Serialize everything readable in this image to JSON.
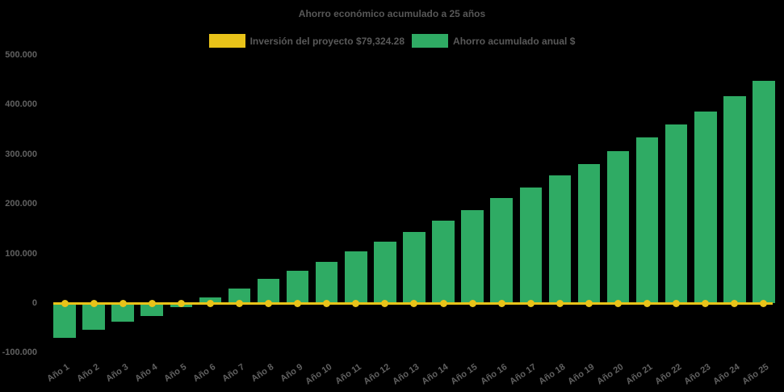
{
  "title": "Ahorro económico acumulado a 25 años",
  "chart_data": {
    "type": "bar",
    "title": "Ahorro económico acumulado a 25 años",
    "background": "#000000",
    "text_color": "#616161",
    "grid": false,
    "legend_position": "top",
    "categories": [
      "Año 1",
      "Año 2",
      "Año 3",
      "Año 4",
      "Año 5",
      "Año 6",
      "Año 7",
      "Año 8",
      "Año 9",
      "Año 10",
      "Año 11",
      "Año 12",
      "Año 13",
      "Año 14",
      "Año 15",
      "Año 16",
      "Año 17",
      "Año 18",
      "Año 19",
      "Año 20",
      "Año 21",
      "Año 22",
      "Año 23",
      "Año 24",
      "Año 25"
    ],
    "series": [
      {
        "name": "Inversión del proyecto $79,324.28",
        "type": "line",
        "color": "#E9C319",
        "values": [
          0,
          0,
          0,
          0,
          0,
          0,
          0,
          0,
          0,
          0,
          0,
          0,
          0,
          0,
          0,
          0,
          0,
          0,
          0,
          0,
          0,
          0,
          0,
          0,
          0
        ]
      },
      {
        "name": "Ahorro acumulado anual $",
        "type": "bar",
        "color": "#2FAB64",
        "values": [
          -70500,
          -54000,
          -38000,
          -25500,
          -8000,
          12000,
          29000,
          48500,
          65500,
          83500,
          104500,
          123500,
          143500,
          165500,
          186500,
          211500,
          233000,
          257500,
          280500,
          306500,
          333500,
          359500,
          386000,
          417000,
          447000
        ]
      }
    ],
    "ylim": [
      -100000,
      500000
    ],
    "yticks": [
      {
        "value": 500000,
        "label": "500.000"
      },
      {
        "value": 400000,
        "label": "400.000"
      },
      {
        "value": 300000,
        "label": "300.000"
      },
      {
        "value": 200000,
        "label": "200.000"
      },
      {
        "value": 100000,
        "label": "100.000"
      },
      {
        "value": 0,
        "label": "0"
      },
      {
        "value": -100000,
        "label": "-100.000"
      }
    ],
    "investment_value": 79324.28
  }
}
